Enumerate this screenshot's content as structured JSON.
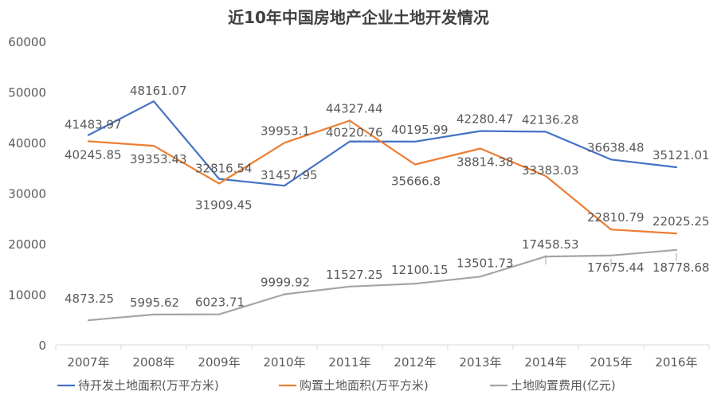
{
  "chart_data": {
    "type": "line",
    "title": "近10年中国房地产企业土地开发情况",
    "categories": [
      "2007年",
      "2008年",
      "2009年",
      "2010年",
      "2011年",
      "2012年",
      "2013年",
      "2014年",
      "2015年",
      "2016年"
    ],
    "ylim": [
      0,
      60000
    ],
    "yticks": [
      0,
      10000,
      20000,
      30000,
      40000,
      50000,
      60000
    ],
    "grid": false,
    "legend_position": "bottom",
    "series": [
      {
        "name": "待开发土地面积(万平方米)",
        "color": "#4472c4",
        "values": [
          41483.97,
          48161.07,
          32816.54,
          31457.95,
          40220.76,
          40195.99,
          42280.47,
          42136.28,
          36638.48,
          35121.01
        ],
        "labels": [
          "41483.97",
          "48161.07",
          "32816.54",
          "31457.95",
          "40220.76",
          "40195.99",
          "42280.47",
          "42136.28",
          "36638.48",
          "35121.01"
        ]
      },
      {
        "name": "购置土地面积(万平方米)",
        "color": "#ed7d31",
        "values": [
          40245.85,
          39353.43,
          31909.45,
          39953.1,
          44327.44,
          35666.8,
          38814.38,
          33383.03,
          22810.79,
          22025.25
        ],
        "labels": [
          "40245.85",
          "39353.43",
          "31909.45",
          "39953.1",
          "44327.44",
          "35666.8",
          "38814.38",
          "33383.03",
          "22810.79",
          "22025.25"
        ]
      },
      {
        "name": "土地购置费用(亿元)",
        "color": "#a5a5a5",
        "values": [
          4873.25,
          5995.62,
          6023.71,
          9999.92,
          11527.25,
          12100.15,
          13501.73,
          17458.53,
          17675.44,
          18778.68
        ],
        "labels": [
          "4873.25",
          "5995.62",
          "6023.71",
          "9999.92",
          "11527.25",
          "12100.15",
          "13501.73",
          "17458.53",
          "17675.44",
          "18778.68"
        ]
      }
    ]
  }
}
